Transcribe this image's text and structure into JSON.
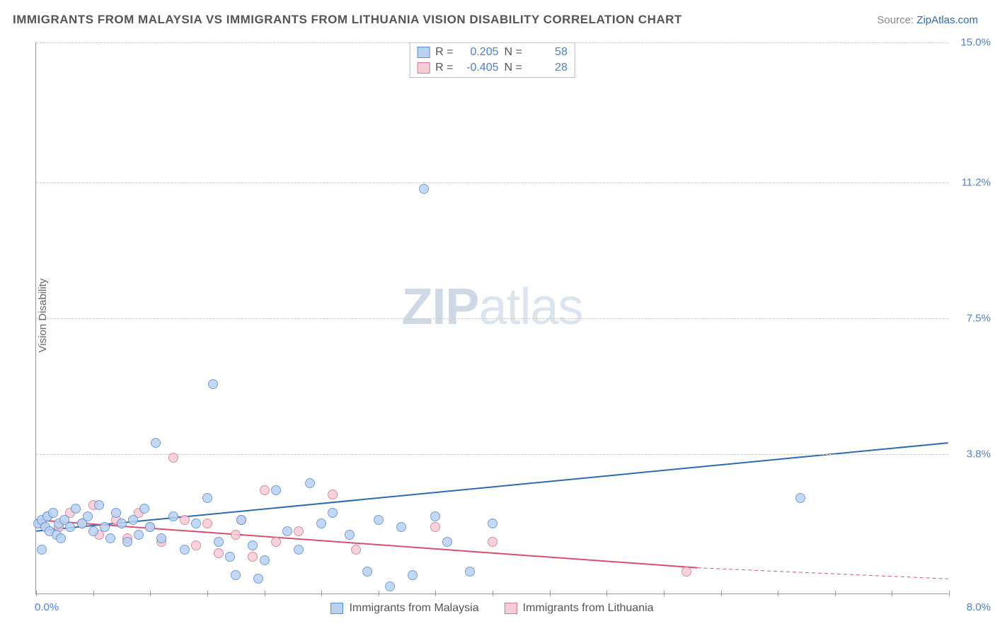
{
  "title": "IMMIGRANTS FROM MALAYSIA VS IMMIGRANTS FROM LITHUANIA VISION DISABILITY CORRELATION CHART",
  "source_label": "Source: ",
  "source_link": "ZipAtlas.com",
  "ylabel": "Vision Disability",
  "watermark_bold": "ZIP",
  "watermark_rest": "atlas",
  "chart": {
    "type": "scatter",
    "xlim": [
      0.0,
      8.0
    ],
    "ylim": [
      0.0,
      15.0
    ],
    "x_origin_label": "0.0%",
    "x_max_label": "8.0%",
    "y_ticks": [
      3.8,
      7.5,
      11.2,
      15.0
    ],
    "y_tick_labels": [
      "3.8%",
      "7.5%",
      "11.2%",
      "15.0%"
    ],
    "x_minor_tick_step": 0.5,
    "grid_color": "#cccccc",
    "background_color": "#ffffff",
    "axis_color": "#999999",
    "tick_label_color": "#4a82d6",
    "marker_radius": 7,
    "marker_border_width": 1
  },
  "series": {
    "malaysia": {
      "label": "Immigrants from Malaysia",
      "fill": "#b9d2f0",
      "stroke": "#5a8fd6",
      "trend_color": "#2b6cb0",
      "trend_width": 2,
      "R": "0.205",
      "N": "58",
      "trend": {
        "x1": 0.0,
        "y1": 1.7,
        "x2": 8.0,
        "y2": 4.1
      },
      "points": [
        [
          0.02,
          1.9
        ],
        [
          0.05,
          2.0
        ],
        [
          0.08,
          1.8
        ],
        [
          0.1,
          2.1
        ],
        [
          0.12,
          1.7
        ],
        [
          0.15,
          2.2
        ],
        [
          0.18,
          1.6
        ],
        [
          0.2,
          1.9
        ],
        [
          0.22,
          1.5
        ],
        [
          0.25,
          2.0
        ],
        [
          0.3,
          1.8
        ],
        [
          0.35,
          2.3
        ],
        [
          0.4,
          1.9
        ],
        [
          0.45,
          2.1
        ],
        [
          0.5,
          1.7
        ],
        [
          0.55,
          2.4
        ],
        [
          0.6,
          1.8
        ],
        [
          0.65,
          1.5
        ],
        [
          0.7,
          2.2
        ],
        [
          0.75,
          1.9
        ],
        [
          0.8,
          1.4
        ],
        [
          0.85,
          2.0
        ],
        [
          0.9,
          1.6
        ],
        [
          0.95,
          2.3
        ],
        [
          1.0,
          1.8
        ],
        [
          1.05,
          4.1
        ],
        [
          1.1,
          1.5
        ],
        [
          1.2,
          2.1
        ],
        [
          1.3,
          1.2
        ],
        [
          1.4,
          1.9
        ],
        [
          1.5,
          2.6
        ],
        [
          1.55,
          5.7
        ],
        [
          1.6,
          1.4
        ],
        [
          1.7,
          1.0
        ],
        [
          1.75,
          0.5
        ],
        [
          1.8,
          2.0
        ],
        [
          1.9,
          1.3
        ],
        [
          1.95,
          0.4
        ],
        [
          2.0,
          0.9
        ],
        [
          2.1,
          2.8
        ],
        [
          2.2,
          1.7
        ],
        [
          2.3,
          1.2
        ],
        [
          2.4,
          3.0
        ],
        [
          2.5,
          1.9
        ],
        [
          2.6,
          2.2
        ],
        [
          2.75,
          1.6
        ],
        [
          2.9,
          0.6
        ],
        [
          3.0,
          2.0
        ],
        [
          3.1,
          0.2
        ],
        [
          3.2,
          1.8
        ],
        [
          3.3,
          0.5
        ],
        [
          3.4,
          11.0
        ],
        [
          3.5,
          2.1
        ],
        [
          3.6,
          1.4
        ],
        [
          3.8,
          0.6
        ],
        [
          4.0,
          1.9
        ],
        [
          6.7,
          2.6
        ],
        [
          0.05,
          1.2
        ]
      ]
    },
    "lithuania": {
      "label": "Immigrants from Lithuania",
      "fill": "#f6cdd6",
      "stroke": "#d67a92",
      "trend_color": "#d94f70",
      "trend_width": 2,
      "R": "-0.405",
      "N": "28",
      "trend": {
        "x1": 0.0,
        "y1": 2.0,
        "x2": 5.8,
        "y2": 0.7
      },
      "trend_ext": {
        "x1": 5.8,
        "y1": 0.7,
        "x2": 8.0,
        "y2": 0.4
      },
      "points": [
        [
          0.05,
          1.9
        ],
        [
          0.1,
          2.1
        ],
        [
          0.2,
          1.8
        ],
        [
          0.3,
          2.2
        ],
        [
          0.4,
          1.9
        ],
        [
          0.5,
          2.4
        ],
        [
          0.55,
          1.6
        ],
        [
          0.7,
          2.0
        ],
        [
          0.8,
          1.5
        ],
        [
          0.9,
          2.2
        ],
        [
          1.0,
          1.8
        ],
        [
          1.1,
          1.4
        ],
        [
          1.2,
          3.7
        ],
        [
          1.3,
          2.0
        ],
        [
          1.4,
          1.3
        ],
        [
          1.5,
          1.9
        ],
        [
          1.6,
          1.1
        ],
        [
          1.75,
          1.6
        ],
        [
          1.8,
          2.0
        ],
        [
          1.9,
          1.0
        ],
        [
          2.0,
          2.8
        ],
        [
          2.1,
          1.4
        ],
        [
          2.3,
          1.7
        ],
        [
          2.6,
          2.7
        ],
        [
          2.8,
          1.2
        ],
        [
          3.5,
          1.8
        ],
        [
          4.0,
          1.4
        ],
        [
          5.7,
          0.6
        ]
      ]
    }
  },
  "legend_top": {
    "R_label": "R =",
    "N_label": "N ="
  }
}
